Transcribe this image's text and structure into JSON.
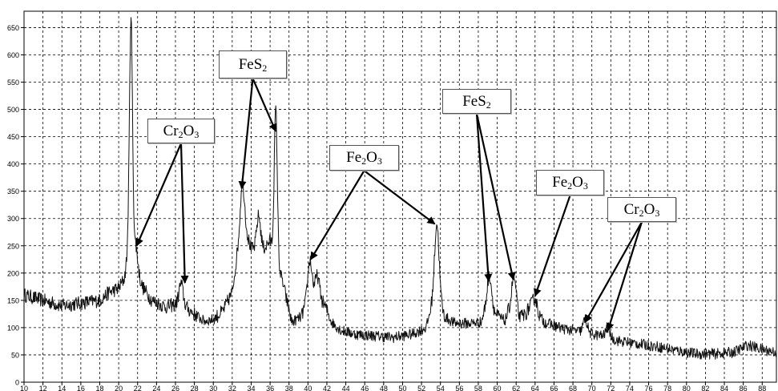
{
  "chart_data": {
    "type": "line",
    "title": "",
    "xlabel": "",
    "ylabel": "",
    "xlim": [
      10,
      89.5
    ],
    "ylim": [
      0,
      680
    ],
    "x_ticks": [
      10,
      12,
      14,
      16,
      18,
      20,
      22,
      24,
      26,
      28,
      30,
      32,
      34,
      36,
      38,
      40,
      42,
      44,
      46,
      48,
      50,
      52,
      54,
      56,
      58,
      60,
      62,
      64,
      66,
      68,
      70,
      72,
      74,
      76,
      78,
      80,
      82,
      84,
      86,
      88
    ],
    "y_ticks": [
      0,
      50,
      100,
      150,
      200,
      250,
      300,
      350,
      400,
      450,
      500,
      550,
      600,
      650
    ],
    "grid": true,
    "series": [
      {
        "color": "#111111",
        "baseline": [
          [
            10,
            160
          ],
          [
            12,
            150
          ],
          [
            14,
            140
          ],
          [
            16,
            145
          ],
          [
            18,
            150
          ],
          [
            19,
            165
          ],
          [
            20,
            172
          ],
          [
            20.6,
            190
          ],
          [
            21,
            240
          ],
          [
            21.8,
            205
          ],
          [
            22.5,
            175
          ],
          [
            23.5,
            150
          ],
          [
            25,
            138
          ],
          [
            26.5,
            145
          ],
          [
            28,
            125
          ],
          [
            29,
            112
          ],
          [
            30,
            115
          ],
          [
            31,
            130
          ],
          [
            32,
            165
          ],
          [
            33,
            300
          ],
          [
            34,
            245
          ],
          [
            35,
            235
          ],
          [
            36,
            260
          ],
          [
            37.3,
            185
          ],
          [
            38.3,
            110
          ],
          [
            39.3,
            120
          ],
          [
            40.2,
            165
          ],
          [
            41,
            160
          ],
          [
            41.8,
            140
          ],
          [
            42.5,
            110
          ],
          [
            43.5,
            95
          ],
          [
            45,
            88
          ],
          [
            47,
            85
          ],
          [
            49,
            82
          ],
          [
            51,
            88
          ],
          [
            52.5,
            100
          ],
          [
            53.2,
            150
          ],
          [
            53.8,
            170
          ],
          [
            54.4,
            120
          ],
          [
            55.5,
            108
          ],
          [
            57,
            108
          ],
          [
            58.3,
            110
          ],
          [
            59,
            150
          ],
          [
            59.8,
            125
          ],
          [
            60.8,
            112
          ],
          [
            61.6,
            150
          ],
          [
            62.3,
            118
          ],
          [
            63,
            125
          ],
          [
            63.5,
            140
          ],
          [
            64,
            138
          ],
          [
            64.5,
            120
          ],
          [
            65,
            110
          ],
          [
            67,
            98
          ],
          [
            69,
            92
          ],
          [
            71,
            85
          ],
          [
            73,
            75
          ],
          [
            75,
            70
          ],
          [
            77,
            65
          ],
          [
            79,
            58
          ],
          [
            81,
            52
          ],
          [
            83,
            52
          ],
          [
            85,
            55
          ],
          [
            86.5,
            68
          ],
          [
            88,
            60
          ],
          [
            89.5,
            55
          ]
        ],
        "peaks": [
          {
            "x": 21.3,
            "y": 665
          },
          {
            "x": 21.8,
            "y": 250
          },
          {
            "x": 26.6,
            "y": 180
          },
          {
            "x": 33.1,
            "y": 365
          },
          {
            "x": 34.8,
            "y": 305
          },
          {
            "x": 36.6,
            "y": 500
          },
          {
            "x": 40.2,
            "y": 225
          },
          {
            "x": 41.0,
            "y": 195
          },
          {
            "x": 53.6,
            "y": 290
          },
          {
            "x": 59.2,
            "y": 195
          },
          {
            "x": 61.8,
            "y": 190
          },
          {
            "x": 64.0,
            "y": 155
          },
          {
            "x": 69.3,
            "y": 115
          },
          {
            "x": 71.7,
            "y": 100
          }
        ]
      }
    ],
    "annotations": [
      {
        "main": "Cr",
        "sub1": "2",
        "mid": "O",
        "sub2": "3",
        "targets": [
          [
            21.9,
            250
          ],
          [
            27.0,
            182
          ]
        ]
      },
      {
        "main": "FeS",
        "sub1": "2",
        "mid": "",
        "sub2": "",
        "targets": [
          [
            33.0,
            355
          ],
          [
            36.6,
            460
          ]
        ]
      },
      {
        "main": "Fe",
        "sub1": "2",
        "mid": "O",
        "sub2": "3",
        "targets": [
          [
            40.3,
            225
          ],
          [
            53.4,
            290
          ]
        ]
      },
      {
        "main": "FeS",
        "sub1": "2",
        "mid": "",
        "sub2": "",
        "targets": [
          [
            59.1,
            185
          ],
          [
            61.7,
            188
          ]
        ]
      },
      {
        "main": "Fe",
        "sub1": "2",
        "mid": "O",
        "sub2": "3",
        "targets": [
          [
            64.0,
            158
          ]
        ]
      },
      {
        "main": "Cr",
        "sub1": "2",
        "mid": "O",
        "sub2": "3",
        "targets": [
          [
            69.3,
            110
          ],
          [
            71.7,
            95
          ]
        ]
      }
    ]
  }
}
